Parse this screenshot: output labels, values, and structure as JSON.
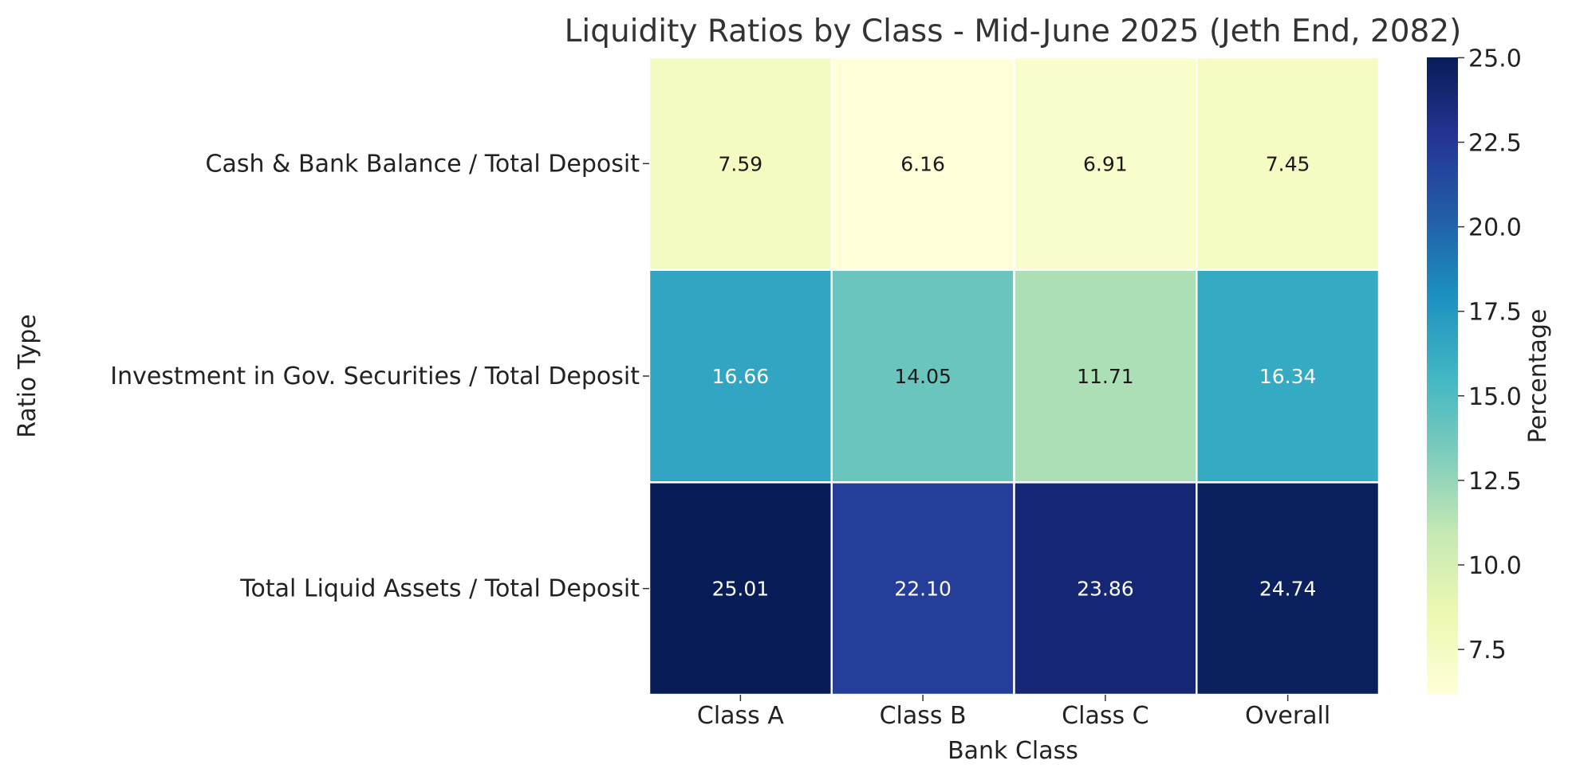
{
  "chart_data": {
    "type": "heatmap",
    "title": "Liquidity Ratios by Class - Mid-June 2025 (Jeth End, 2082)",
    "xlabel": "Bank Class",
    "ylabel": "Ratio Type",
    "x_categories": [
      "Class A",
      "Class B",
      "Class C",
      "Overall"
    ],
    "y_categories": [
      "Cash & Bank Balance / Total Deposit",
      "Investment in Gov. Securities / Total Deposit",
      "Total Liquid Assets / Total Deposit"
    ],
    "values": [
      [
        7.59,
        6.16,
        6.91,
        7.45
      ],
      [
        16.66,
        14.05,
        11.71,
        16.34
      ],
      [
        25.01,
        22.1,
        23.86,
        24.74
      ]
    ],
    "value_labels": [
      [
        "7.59",
        "6.16",
        "6.91",
        "7.45"
      ],
      [
        "16.66",
        "14.05",
        "11.71",
        "16.34"
      ],
      [
        "25.01",
        "22.10",
        "23.86",
        "24.74"
      ]
    ],
    "colorbar": {
      "label": "Percentage",
      "range": [
        6.16,
        25.01
      ],
      "ticks": [
        7.5,
        10.0,
        12.5,
        15.0,
        17.5,
        20.0,
        22.5,
        25.0
      ],
      "tick_labels": [
        "7.5",
        "10.0",
        "12.5",
        "15.0",
        "17.5",
        "20.0",
        "22.5",
        "25.0"
      ],
      "colormap": "YlGnBu",
      "colormap_stops": [
        "#ffffd9",
        "#edf8b1",
        "#c7e9b4",
        "#7fcdbb",
        "#41b6c4",
        "#1d91c0",
        "#225ea8",
        "#253494",
        "#081d58"
      ]
    },
    "grid": false,
    "cell_border_color": "#ffffff"
  }
}
